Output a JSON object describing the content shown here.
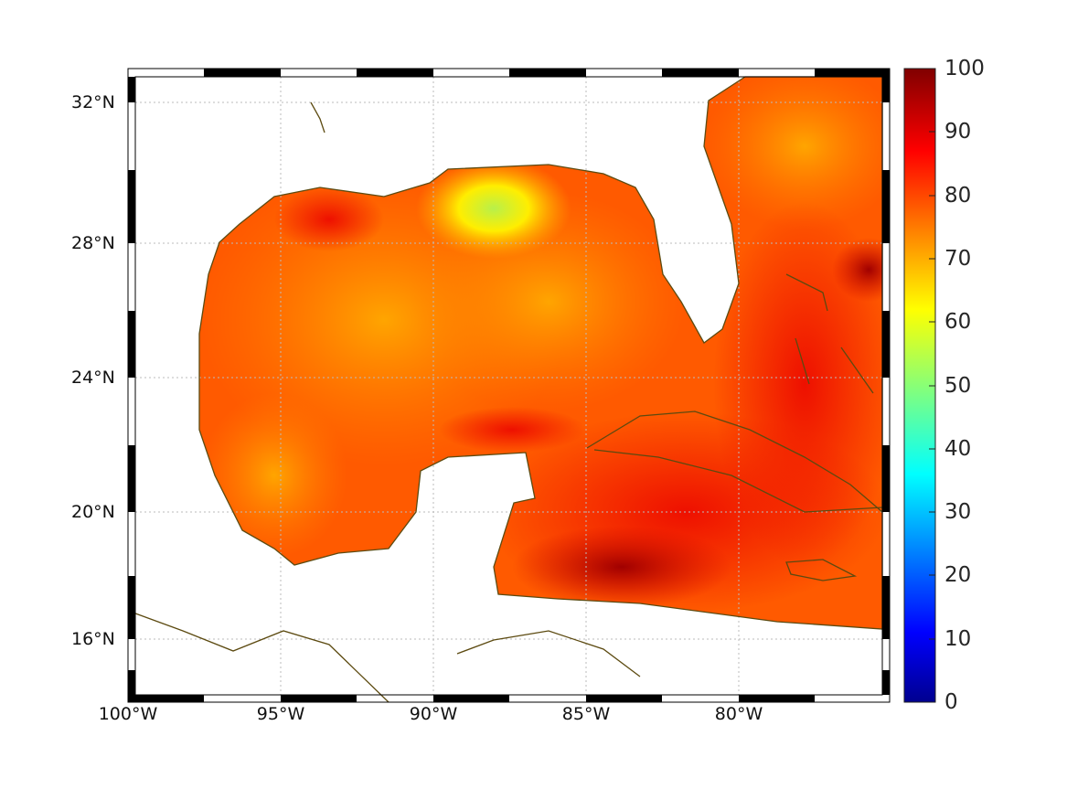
{
  "map": {
    "type": "heatmap",
    "region": "Gulf of Mexico / Caribbean",
    "x_ticks": [
      "100°W",
      "95°W",
      "90°W",
      "85°W",
      "80°W"
    ],
    "x_tick_values": [
      -100,
      -95,
      -90,
      -85,
      -80
    ],
    "y_ticks": [
      "32°N",
      "28°N",
      "24°N",
      "20°N",
      "16°N"
    ],
    "y_tick_values": [
      32,
      28,
      24,
      20,
      16
    ],
    "lon_range": [
      -100,
      -75
    ],
    "lat_range": [
      15,
      33
    ],
    "colorbar": {
      "ticks": [
        "100",
        "90",
        "80",
        "70",
        "60",
        "50",
        "40",
        "30",
        "20",
        "10",
        "0"
      ],
      "range": [
        0,
        100
      ],
      "colormap": "jet"
    },
    "colors": {
      "coast": "#5c4a10",
      "frame": "#000000"
    }
  }
}
